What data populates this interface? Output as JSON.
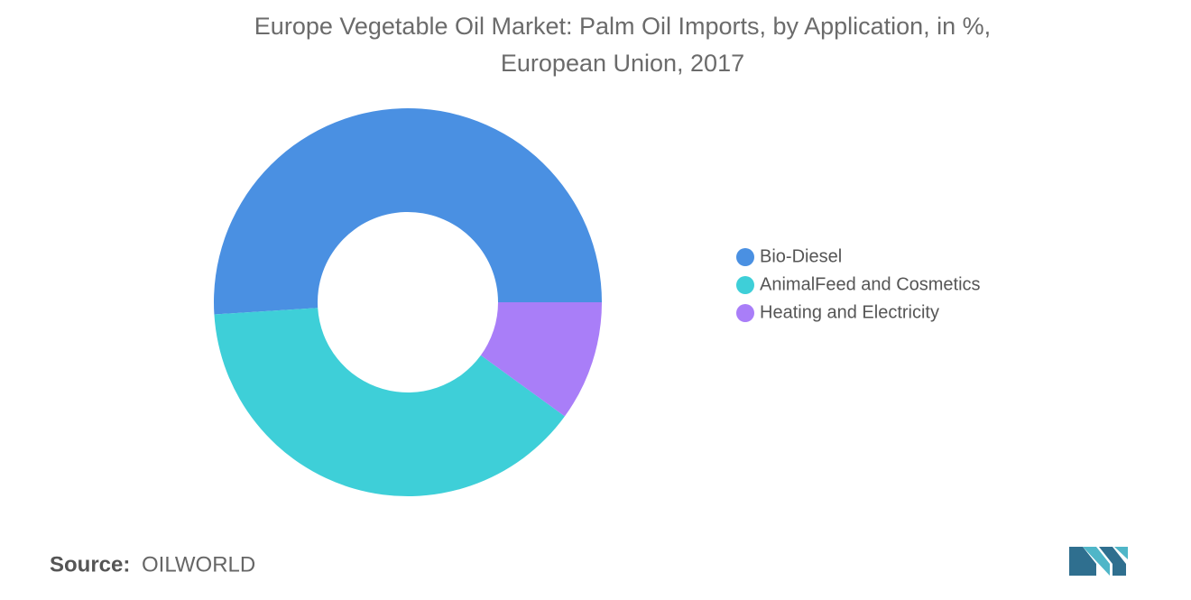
{
  "chart_data": {
    "type": "donut",
    "title": "Europe Vegetable Oil Market: Palm Oil Imports, by Application, in %,",
    "subtitle": "European Union, 2017",
    "categories": [
      "Bio-Diesel",
      "AnimalFeed and Cosmetics",
      "Heating and Electricity"
    ],
    "values": [
      51,
      39,
      10
    ],
    "colors": [
      "#4a90e2",
      "#3ecfd8",
      "#a97ef8"
    ],
    "legend": "right",
    "source_label": "Source:",
    "source": "OILWORLD"
  }
}
